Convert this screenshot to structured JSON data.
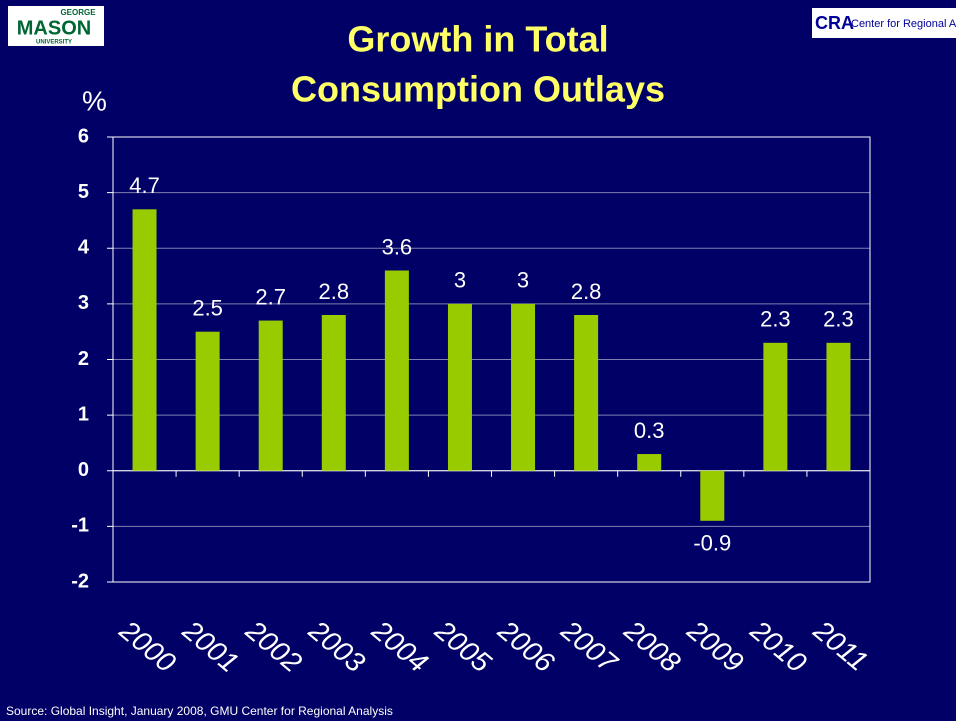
{
  "chart_data": {
    "type": "bar",
    "title": [
      "Growth in Total",
      "Consumption Outlays"
    ],
    "y_label": "%",
    "source": "Source:  Global Insight,  January 2008, GMU Center for Regional Analysis",
    "logos": {
      "left_small": "GEORGE",
      "left": "MASON",
      "left_bottom": "UNIVERSITY",
      "right_mark": "CRA",
      "right": "Center for Regional Analy"
    },
    "categories": [
      "2000",
      "2001",
      "2002",
      "2003",
      "2004",
      "2005",
      "2006",
      "2007",
      "2008",
      "2009",
      "2010",
      "2011"
    ],
    "values": [
      4.7,
      2.5,
      2.7,
      2.8,
      3.6,
      3,
      3,
      2.8,
      0.3,
      -0.9,
      2.3,
      2.3
    ],
    "color": "#99cc00",
    "ylim": [
      -2,
      6
    ],
    "yticks": [
      -2,
      -1,
      0,
      1,
      2,
      3,
      4,
      5,
      6
    ],
    "grid": true
  }
}
